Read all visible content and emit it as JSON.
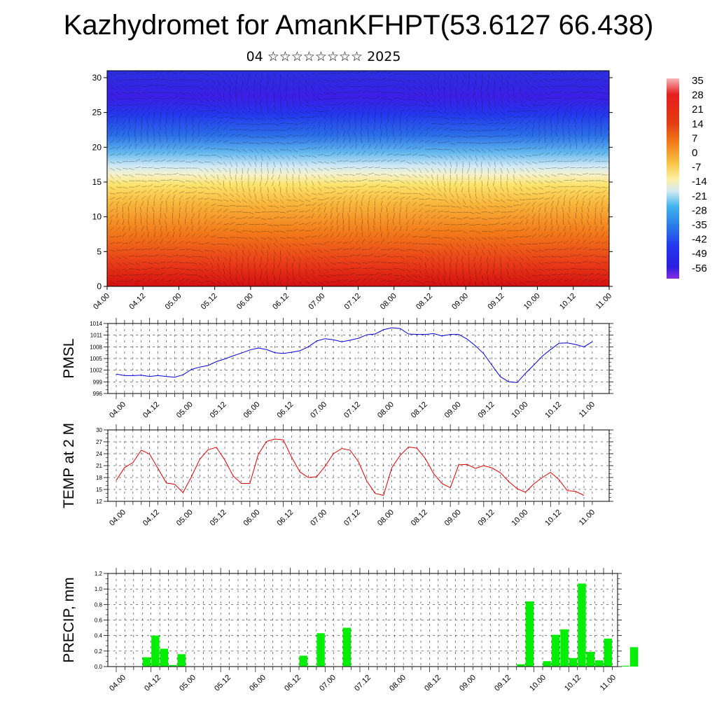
{
  "header": {
    "title": "Kazhydromet for AmanKFHPT(53.6127 66.438)",
    "subtitle": "04 ☆☆☆☆☆☆☆☆ 2025"
  },
  "colors": {
    "pmsl_line": "#0000e0",
    "temp_line": "#e00000",
    "precip_bar": "#00ee00",
    "colorbar_top": "#f4b6b6",
    "colorbar_bottom": "#8a2be2"
  },
  "chart_data": [
    {
      "type": "heatmap",
      "description_key": "cross_section",
      "x_ticks": [
        "04.00",
        "04.12",
        "05.00",
        "05.12",
        "06.00",
        "06.12",
        "07.00",
        "07.12",
        "08.00",
        "08.12",
        "09.00",
        "09.12",
        "10.00",
        "10.12",
        "11.00"
      ],
      "y_ticks": [
        0,
        5,
        10,
        15,
        20,
        25,
        30
      ],
      "ylim": [
        0,
        31
      ],
      "colorbar_labels": [
        "35",
        "28",
        "21",
        "14",
        "7",
        "0",
        "-7",
        "-14",
        "-21",
        "-28",
        "-35",
        "-42",
        "-49",
        "-56"
      ],
      "colorbar_range": [
        -63,
        38
      ],
      "wind_barbs": true
    },
    {
      "type": "line",
      "ylabel": "PMSL",
      "y_ticks": [
        996,
        999,
        1002,
        1005,
        1008,
        1011,
        1014
      ],
      "ylim": [
        996,
        1014
      ],
      "x_ticks": [
        "04.00",
        "04.12",
        "05.00",
        "05.12",
        "06.00",
        "06.12",
        "07.00",
        "07.12",
        "08.00",
        "08.12",
        "09.00",
        "09.12",
        "10.00",
        "10.12",
        "11.00"
      ],
      "grid": true,
      "series": [
        {
          "values": [
            1001.0,
            1000.6,
            1000.6,
            1000.7,
            1000.4,
            1000.6,
            1000.4,
            1000.2,
            1000.8,
            1002.2,
            1002.8,
            1003.2,
            1004.2,
            1004.9,
            1005.7,
            1006.4,
            1007.2,
            1007.7,
            1007.3,
            1006.5,
            1006.3,
            1006.6,
            1007.0,
            1008.0,
            1009.5,
            1010.1,
            1009.8,
            1009.3,
            1009.7,
            1010.2,
            1011.1,
            1011.3,
            1012.4,
            1012.9,
            1012.7,
            1011.3,
            1011.2,
            1011.2,
            1011.4,
            1010.8,
            1011.2,
            1011.2,
            1010.0,
            1008.3,
            1006.2,
            1003.2,
            1000.3,
            999.0,
            998.8,
            1001.2,
            1003.3,
            1005.6,
            1007.3,
            1008.9,
            1009.0,
            1008.6,
            1008.0,
            1009.3
          ]
        }
      ]
    },
    {
      "type": "line",
      "ylabel": "TEMP at 2 M",
      "y_ticks": [
        12,
        15,
        18,
        21,
        24,
        27,
        30
      ],
      "ylim": [
        12,
        30
      ],
      "x_ticks": [
        "04.00",
        "04.12",
        "05.00",
        "05.12",
        "06.00",
        "06.12",
        "07.00",
        "07.12",
        "08.00",
        "08.12",
        "09.00",
        "09.12",
        "10.00",
        "10.12",
        "11.00"
      ],
      "grid": true,
      "series": [
        {
          "values": [
            17.3,
            20.5,
            21.8,
            24.9,
            23.9,
            20.3,
            16.6,
            16.3,
            14.2,
            18.2,
            22.6,
            25.0,
            25.6,
            22.4,
            18.4,
            16.5,
            16.5,
            23.8,
            27.1,
            27.7,
            27.5,
            23.1,
            19.4,
            18.0,
            18.2,
            20.8,
            24.0,
            25.3,
            24.9,
            22.0,
            17.1,
            14.0,
            13.5,
            20.5,
            23.6,
            25.7,
            25.4,
            22.8,
            19.0,
            16.5,
            15.4,
            21.2,
            21.3,
            20.3,
            21.0,
            20.4,
            19.2,
            17.0,
            15.2,
            14.3,
            16.4,
            18.0,
            19.3,
            17.5,
            14.7,
            14.5,
            13.5
          ]
        }
      ]
    },
    {
      "type": "bar",
      "ylabel": "PRECIP, mm",
      "y_ticks": [
        "0.0",
        "0.2",
        "0.4",
        "0.6",
        "0.8",
        "1.0",
        "1.2"
      ],
      "ylim": [
        0,
        1.2
      ],
      "x_ticks": [
        "04.00",
        "04.12",
        "05.00",
        "05.12",
        "06.00",
        "06.12",
        "07.00",
        "07.12",
        "08.00",
        "08.12",
        "09.00",
        "09.12",
        "10.00",
        "10.12",
        "11.00"
      ],
      "grid": true,
      "bars": [
        {
          "t": 3,
          "value": 0.12
        },
        {
          "t": 4,
          "value": 0.4
        },
        {
          "t": 5,
          "value": 0.23
        },
        {
          "t": 6,
          "value": 0.02
        },
        {
          "t": 7,
          "value": 0.16
        },
        {
          "t": 21,
          "value": 0.14
        },
        {
          "t": 22,
          "value": 0.01
        },
        {
          "t": 23,
          "value": 0.43
        },
        {
          "t": 26,
          "value": 0.5
        },
        {
          "t": 46,
          "value": 0.03
        },
        {
          "t": 47,
          "value": 0.84
        },
        {
          "t": 49,
          "value": 0.07
        },
        {
          "t": 50,
          "value": 0.41
        },
        {
          "t": 51,
          "value": 0.48
        },
        {
          "t": 52,
          "value": 0.11
        },
        {
          "t": 53,
          "value": 1.07
        },
        {
          "t": 54,
          "value": 0.19
        },
        {
          "t": 55,
          "value": 0.08
        },
        {
          "t": 56,
          "value": 0.36
        },
        {
          "t": 58,
          "value": 0.01
        },
        {
          "t": 59,
          "value": 0.25
        }
      ]
    }
  ]
}
